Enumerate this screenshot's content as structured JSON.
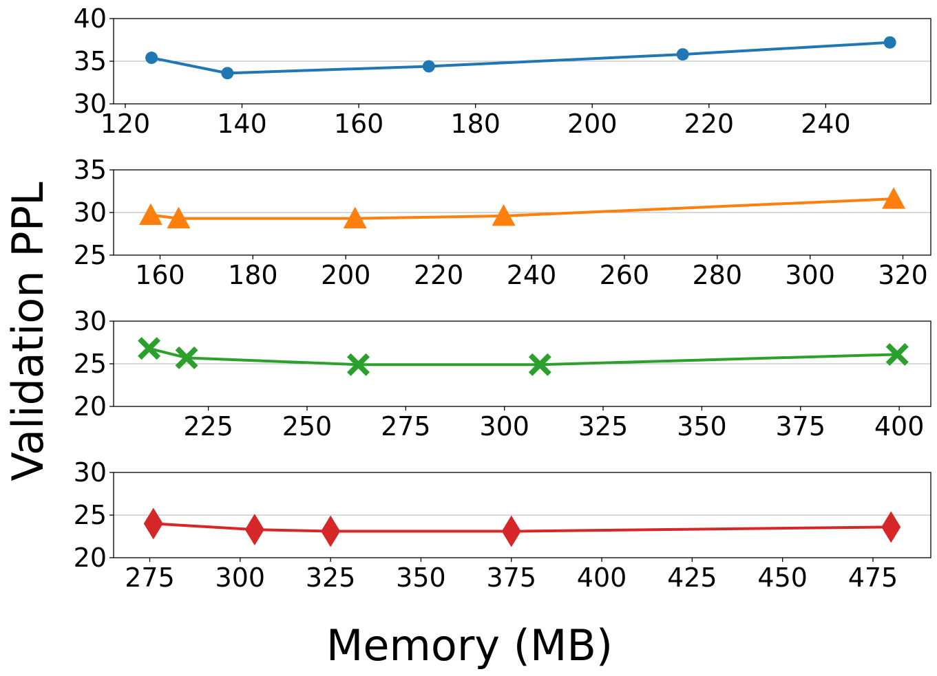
{
  "chart_data": {
    "type": "line",
    "xlabel": "Memory (MB)",
    "ylabel": "Validation PPL",
    "panels": [
      {
        "color": "#1f77b4",
        "marker": "circle",
        "x": [
          124.5,
          137.5,
          172,
          215.5,
          251
        ],
        "y": [
          35.4,
          33.6,
          34.4,
          35.8,
          37.2
        ],
        "xlim": [
          118,
          258
        ],
        "ylim": [
          30,
          40
        ],
        "xticks": [
          120,
          140,
          160,
          180,
          200,
          220,
          240
        ],
        "yticks": [
          30,
          35,
          40
        ],
        "grid_y": [
          35
        ]
      },
      {
        "color": "#ff7f0e",
        "marker": "triangle",
        "x": [
          158,
          164,
          202,
          234,
          318
        ],
        "y": [
          29.7,
          29.3,
          29.3,
          29.6,
          31.6
        ],
        "xlim": [
          150,
          326
        ],
        "ylim": [
          25,
          35
        ],
        "xticks": [
          160,
          180,
          200,
          220,
          240,
          260,
          280,
          300,
          320
        ],
        "yticks": [
          25,
          30,
          35
        ],
        "grid_y": [
          30
        ]
      },
      {
        "color": "#2ca02c",
        "marker": "x",
        "x": [
          210,
          219.5,
          263,
          309,
          399.5
        ],
        "y": [
          26.8,
          25.7,
          24.9,
          24.9,
          26.1
        ],
        "xlim": [
          201,
          408
        ],
        "ylim": [
          20,
          30
        ],
        "xticks": [
          225,
          250,
          275,
          300,
          325,
          350,
          375,
          400
        ],
        "yticks": [
          20,
          25,
          30
        ],
        "grid_y": [
          25
        ]
      },
      {
        "color": "#d62728",
        "marker": "diamond",
        "x": [
          276,
          304,
          325,
          375,
          480
        ],
        "y": [
          24,
          23.3,
          23.1,
          23.1,
          23.6
        ],
        "xlim": [
          265,
          491
        ],
        "ylim": [
          20,
          30
        ],
        "xticks": [
          275,
          300,
          325,
          350,
          375,
          400,
          425,
          450,
          475
        ],
        "yticks": [
          20,
          25,
          30
        ],
        "grid_y": [
          25
        ]
      }
    ]
  }
}
